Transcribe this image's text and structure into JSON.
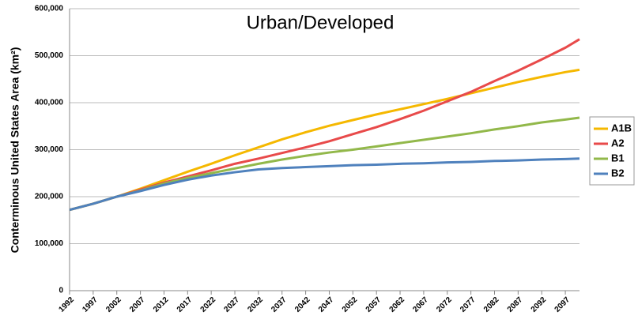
{
  "chart_data": {
    "type": "line",
    "title": "Urban/Developed",
    "y_label": "Conterminous United States Area (km²)",
    "x": [
      1992,
      1997,
      2002,
      2007,
      2012,
      2017,
      2022,
      2027,
      2032,
      2037,
      2042,
      2047,
      2052,
      2057,
      2062,
      2067,
      2072,
      2077,
      2082,
      2087,
      2092,
      2097,
      2100
    ],
    "xlim": [
      1992,
      2100
    ],
    "xticks": [
      1992,
      1997,
      2002,
      2007,
      2012,
      2017,
      2022,
      2027,
      2032,
      2037,
      2042,
      2047,
      2052,
      2057,
      2062,
      2067,
      2072,
      2077,
      2082,
      2087,
      2092,
      2097
    ],
    "ylim": [
      0,
      600000
    ],
    "yticks": [
      0,
      {
        "value": 100000,
        "label": "100,000"
      },
      {
        "value": 200000,
        "label": "200,000"
      },
      {
        "value": 300000,
        "label": "300,000"
      },
      {
        "value": 400000,
        "label": "400,000"
      },
      {
        "value": 500000,
        "label": "500,000"
      },
      {
        "value": 600000,
        "label": "600,000"
      }
    ],
    "grid": true,
    "legend": "right",
    "series": [
      {
        "name": "A1B",
        "color": "#f5b800",
        "values": [
          172000,
          185000,
          200000,
          217000,
          235000,
          253000,
          270000,
          288000,
          305000,
          322000,
          337000,
          351000,
          363000,
          375000,
          386000,
          397000,
          408000,
          420000,
          432000,
          444000,
          455000,
          465000,
          470000
        ]
      },
      {
        "name": "A2",
        "color": "#e84a4a",
        "values": [
          172000,
          185000,
          200000,
          215000,
          230000,
          243000,
          256000,
          270000,
          281000,
          293000,
          305000,
          318000,
          333000,
          348000,
          365000,
          383000,
          403000,
          423000,
          446000,
          468000,
          492000,
          517000,
          535000
        ]
      },
      {
        "name": "B1",
        "color": "#92b84a",
        "values": [
          172000,
          185000,
          200000,
          213000,
          228000,
          240000,
          250000,
          260000,
          270000,
          279000,
          287000,
          294000,
          300000,
          307000,
          314000,
          321000,
          328000,
          335000,
          343000,
          350000,
          358000,
          364000,
          368000
        ]
      },
      {
        "name": "B2",
        "color": "#4f81bd",
        "values": [
          172000,
          185000,
          200000,
          212000,
          225000,
          236000,
          245000,
          252000,
          258000,
          261000,
          263000,
          265000,
          267000,
          268000,
          270000,
          271000,
          273000,
          274000,
          276000,
          277000,
          279000,
          280000,
          281000
        ]
      }
    ]
  }
}
